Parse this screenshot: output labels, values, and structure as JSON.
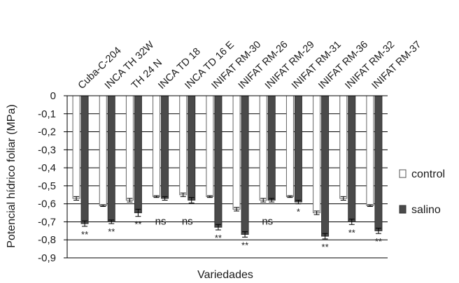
{
  "chart_data": {
    "type": "bar",
    "xlabel": "Variedades",
    "ylabel": "Potencial hídrico foliar (MPa)",
    "ylim": [
      -0.9,
      0
    ],
    "yticks": [
      "0",
      "-0,1",
      "-0,2",
      "-0,3",
      "-0,4",
      "-0,5",
      "-0,6",
      "-0,7",
      "-0,8",
      "-0,9"
    ],
    "ytick_values": [
      0,
      -0.1,
      -0.2,
      -0.3,
      -0.4,
      -0.5,
      -0.6,
      -0.7,
      -0.8,
      -0.9
    ],
    "categories": [
      "Cuba-C-204",
      "INCA TH 32W",
      "TH 24 N",
      "INCA TD 18",
      "INCA TD 16 E",
      "INIFAT RM-30",
      "INIFAT RM-26",
      "INIFAT RM-29",
      "INIFAT RM-31",
      "INIFAT RM-36",
      "INIFAT RM-32",
      "INIFAT RM-37"
    ],
    "series": [
      {
        "name": "control",
        "color": "#ffffff",
        "values": [
          -0.57,
          -0.61,
          -0.58,
          -0.56,
          -0.55,
          -0.56,
          -0.63,
          -0.58,
          -0.56,
          -0.65,
          -0.57,
          -0.61
        ],
        "errors": [
          0.01,
          0.005,
          0.01,
          0.005,
          0.01,
          0.005,
          0.01,
          0.01,
          0.005,
          0.01,
          0.01,
          0.005
        ]
      },
      {
        "name": "salino",
        "color": "#4a4a4a",
        "values": [
          -0.71,
          -0.7,
          -0.65,
          -0.57,
          -0.58,
          -0.73,
          -0.77,
          -0.58,
          -0.59,
          -0.78,
          -0.7,
          -0.75
        ],
        "errors": [
          0.015,
          0.01,
          0.02,
          0.01,
          0.015,
          0.015,
          0.015,
          0.01,
          0.01,
          0.015,
          0.015,
          0.015
        ]
      }
    ],
    "significance": [
      "**",
      "**",
      "**",
      "ns",
      "ns",
      "**",
      "**",
      "ns",
      "*",
      "**",
      "**",
      "**"
    ],
    "legend_position": "right",
    "grid": true
  }
}
